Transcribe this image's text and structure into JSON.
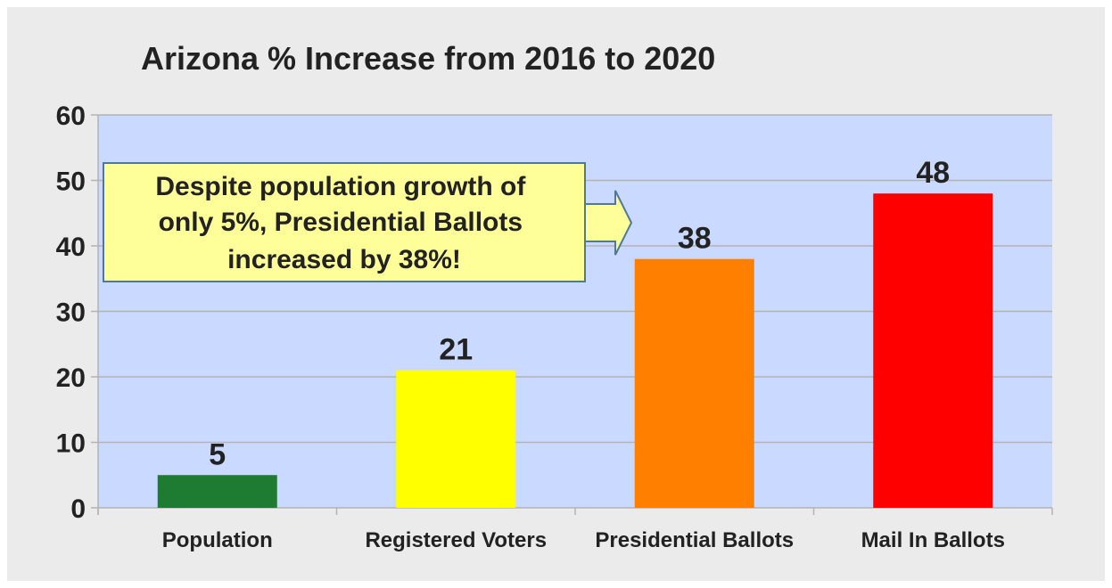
{
  "chart_data": {
    "type": "bar",
    "title": "Arizona % Increase from 2016 to 2020",
    "categories": [
      "Population",
      "Registered Voters",
      "Presidential Ballots",
      "Mail In Ballots"
    ],
    "values": [
      5,
      21,
      38,
      48
    ],
    "data_labels": [
      "5",
      "21",
      "38",
      "48"
    ],
    "colors": [
      "#1e7b32",
      "#ffff00",
      "#ff8000",
      "#ff0000"
    ],
    "ylim": [
      0,
      60
    ],
    "yticks": [
      "0",
      "10",
      "20",
      "30",
      "40",
      "50",
      "60"
    ],
    "grid": true,
    "plot_background": "#c9d9ff",
    "legend": "none",
    "annotation": {
      "lines": [
        "Despite population growth of",
        "only 5%, Presidential Ballots",
        "increased by 38%!"
      ],
      "fill": "#ffff99",
      "icon": "right-arrow-icon"
    }
  }
}
